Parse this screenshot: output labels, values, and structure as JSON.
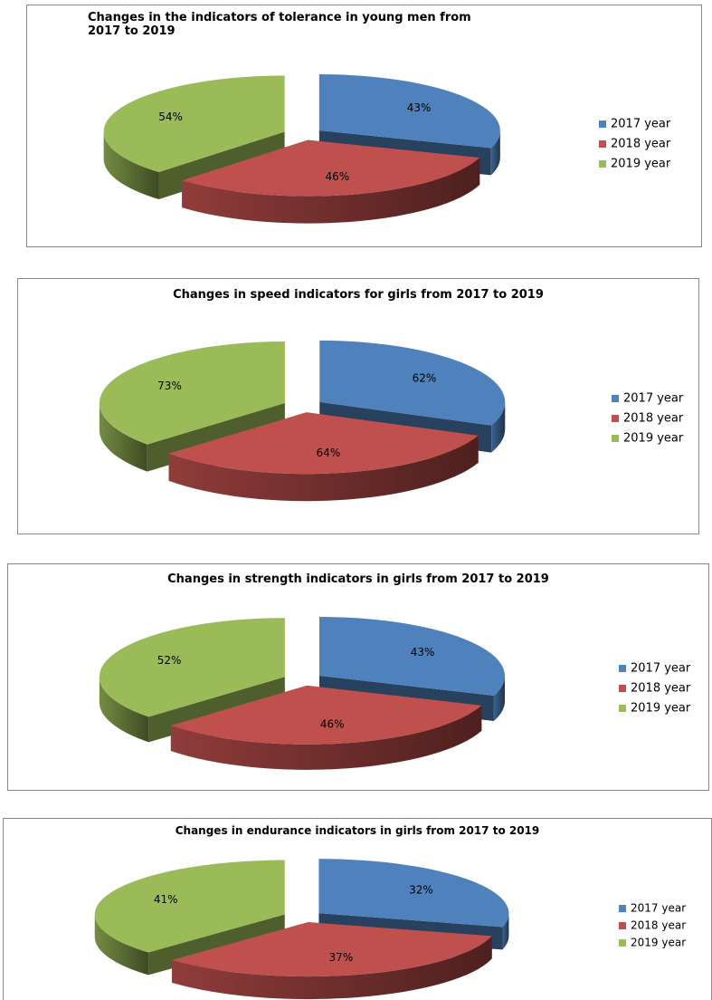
{
  "chart_data": [
    {
      "type": "pie",
      "title": "Changes in the indicators of tolerance in young men from 2017 to 2019",
      "categories": [
        "2017 year",
        "2018 year",
        "2019 year"
      ],
      "values": [
        43,
        46,
        54
      ],
      "value_labels": [
        "43%",
        "46%",
        "54%"
      ],
      "colors": [
        "#4f81bd",
        "#c0504d",
        "#9bbb59"
      ],
      "legend": "right"
    },
    {
      "type": "pie",
      "title": "Changes in speed indicators for girls from 2017 to 2019",
      "categories": [
        "2017 year",
        "2018 year",
        "2019 year"
      ],
      "values": [
        62,
        64,
        73
      ],
      "value_labels": [
        "62%",
        "64%",
        "73%"
      ],
      "colors": [
        "#4f81bd",
        "#c0504d",
        "#9bbb59"
      ],
      "legend": "right"
    },
    {
      "type": "pie",
      "title": "Changes in strength indicators in girls from 2017 to 2019",
      "categories": [
        "2017 year",
        "2018 year",
        "2019 year"
      ],
      "values": [
        43,
        46,
        52
      ],
      "value_labels": [
        "43%",
        "46%",
        "52%"
      ],
      "colors": [
        "#4f81bd",
        "#c0504d",
        "#9bbb59"
      ],
      "legend": "right"
    },
    {
      "type": "pie",
      "title": "Changes in endurance indicators in girls from 2017 to 2019",
      "categories": [
        "2017 year",
        "2018 year",
        "2019 year"
      ],
      "values": [
        32,
        37,
        41
      ],
      "value_labels": [
        "32%",
        "37%",
        "41%"
      ],
      "colors": [
        "#4f81bd",
        "#c0504d",
        "#9bbb59"
      ],
      "legend": "right"
    }
  ]
}
